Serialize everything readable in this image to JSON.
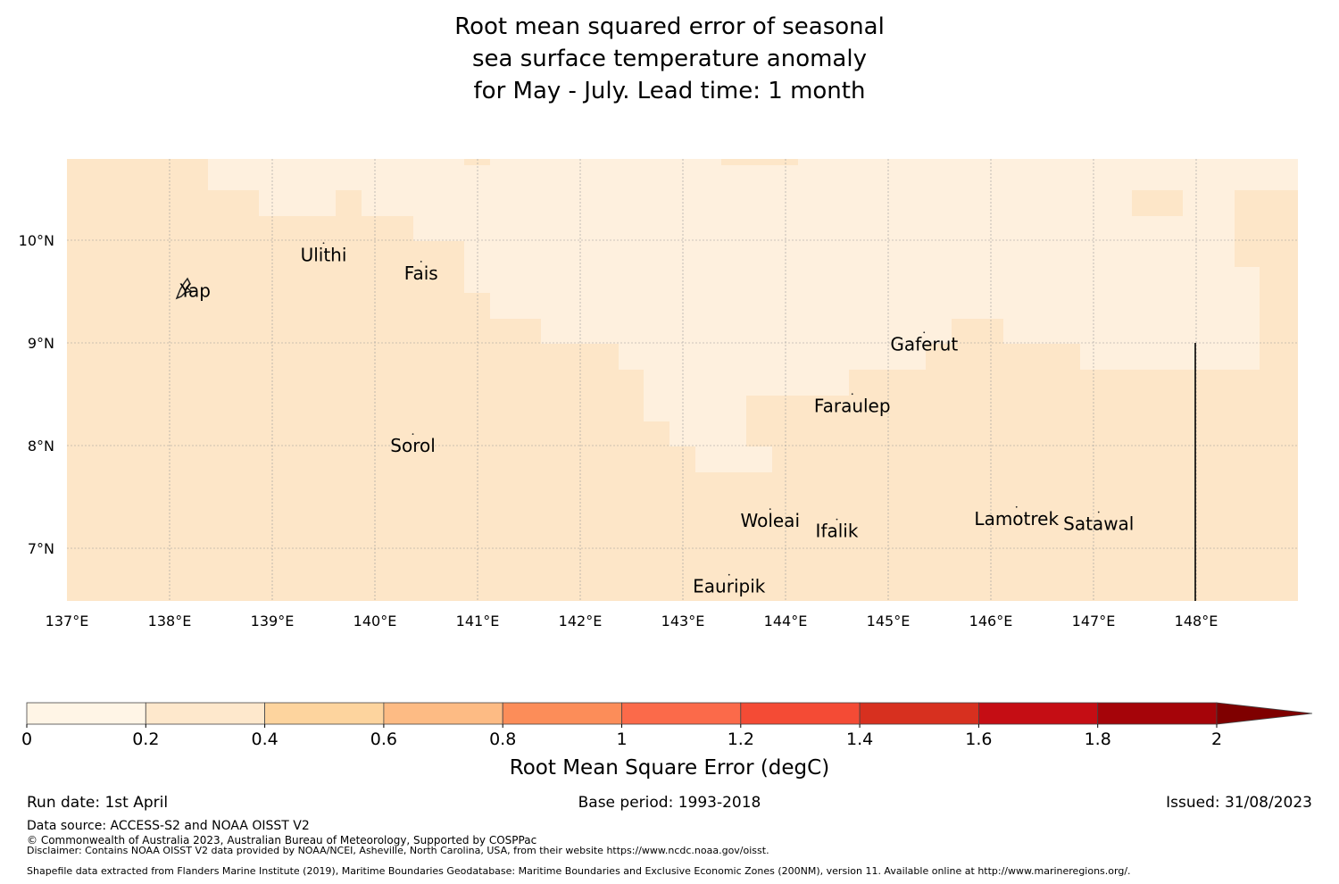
{
  "title": {
    "line1": "Root mean squared error of seasonal",
    "line2": "sea surface temperature anomaly",
    "line3": "for May - July. Lead time: 1 month"
  },
  "map": {
    "x_ticks": [
      "137°E",
      "138°E",
      "139°E",
      "140°E",
      "141°E",
      "142°E",
      "143°E",
      "144°E",
      "145°E",
      "146°E",
      "147°E",
      "148°E"
    ],
    "y_ticks": [
      "10°N",
      "9°N",
      "8°N",
      "7°N"
    ],
    "islands": [
      {
        "name": "Yap",
        "lon": 138.25,
        "lat": 9.5
      },
      {
        "name": "Ulithi",
        "lon": 139.5,
        "lat": 9.85
      },
      {
        "name": "Fais",
        "lon": 140.45,
        "lat": 9.67
      },
      {
        "name": "Gaferut",
        "lon": 145.35,
        "lat": 8.98
      },
      {
        "name": "Faraulep",
        "lon": 144.65,
        "lat": 8.38
      },
      {
        "name": "Sorol",
        "lon": 140.37,
        "lat": 7.99
      },
      {
        "name": "Woleai",
        "lon": 143.85,
        "lat": 7.26
      },
      {
        "name": "Ifalik",
        "lon": 144.5,
        "lat": 7.16
      },
      {
        "name": "Lamotrek",
        "lon": 146.25,
        "lat": 7.28
      },
      {
        "name": "Satawal",
        "lon": 147.05,
        "lat": 7.23
      },
      {
        "name": "Eauripik",
        "lon": 143.45,
        "lat": 6.62
      }
    ],
    "colors": {
      "low": "#fef0de",
      "mid": "#fde6c8",
      "island": "#222222"
    }
  },
  "colorbar": {
    "label": "Root Mean Square Error (degC)",
    "ticks": [
      "0",
      "0.2",
      "0.4",
      "0.6",
      "0.8",
      "1",
      "1.2",
      "1.4",
      "1.6",
      "1.8",
      "2"
    ],
    "colors": [
      "#fff5e6",
      "#fee8cc",
      "#fdd49e",
      "#fdbb84",
      "#fc8d59",
      "#fb6a4a",
      "#f44b35",
      "#d7301f",
      "#c50d14",
      "#a50409",
      "#7f0000"
    ]
  },
  "footer": {
    "run_date": "Run date: 1st April",
    "base_period": "Base period: 1993-2018",
    "issued": "Issued: 31/08/2023",
    "data_source": "Data source: ACCESS-S2 and NOAA OISST V2",
    "copyright": "© Commonwealth of Australia 2023, Australian Bureau of Meteorology, Supported by COSPPac",
    "disclaimer": "Disclaimer: Contains NOAA OISST V2 data provided by NOAA/NCEI, Asheville, North Carolina, USA, from their website https://www.ncdc.noaa.gov/oisst.",
    "shapefile": "Shapefile data extracted from Flanders Marine Institute (2019), Maritime Boundaries Geodatabase: Maritime Boundaries and Exclusive Economic Zones (200NM), version 11. Available online at http://www.marineregions.org/."
  }
}
